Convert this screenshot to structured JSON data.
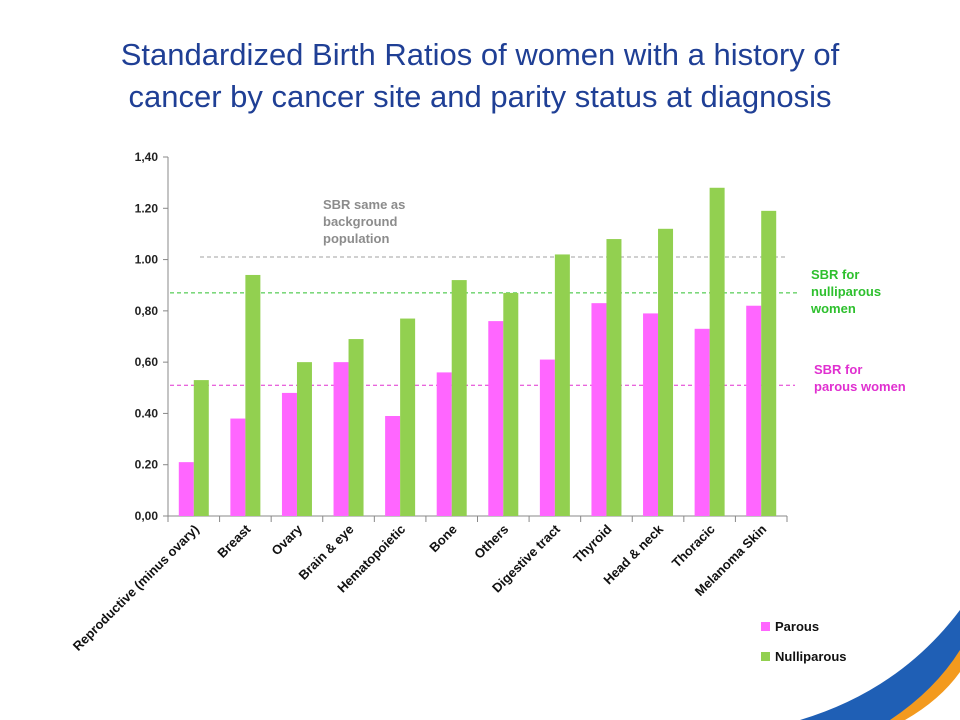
{
  "title": {
    "line1": "Standardized Birth Ratios of women with a history of",
    "line2": "cancer by cancer site and parity status at diagnosis"
  },
  "colors": {
    "parous": "#ff66ff",
    "nulliparous": "#92d050",
    "background_ref": "#a0a0a0",
    "nulliparous_ref": "#2ec02e",
    "parous_ref": "#e030d0",
    "title": "#1f3f95",
    "accent_blue": "#1f5fb5",
    "accent_orange": "#f39a1e"
  },
  "chart_data": {
    "type": "bar",
    "categories": [
      "Reproductive (minus ovary)",
      "Breast",
      "Ovary",
      "Brain & eye",
      "Hematopoietic",
      "Bone",
      "Others",
      "Digestive tract",
      "Thyroid",
      "Head & neck",
      "Thoracic",
      "Melanoma Skin"
    ],
    "series": [
      {
        "name": "Parous",
        "values": [
          0.21,
          0.38,
          0.48,
          0.6,
          0.39,
          0.56,
          0.76,
          0.61,
          0.83,
          0.79,
          0.73,
          0.82
        ]
      },
      {
        "name": "Nulliparous",
        "values": [
          0.53,
          0.94,
          0.6,
          0.69,
          0.77,
          0.92,
          0.87,
          1.02,
          1.08,
          1.12,
          1.28,
          1.19
        ]
      }
    ],
    "ylim": [
      0,
      1.4
    ],
    "yticks": [
      "0,00",
      "0.20",
      "0.40",
      "0,60",
      "0,80",
      "1.00",
      "1.20",
      "1,40"
    ],
    "ytick_values": [
      0,
      0.2,
      0.4,
      0.6,
      0.8,
      1.0,
      1.2,
      1.4
    ],
    "legend_position": "bottom-right",
    "reference_lines": [
      {
        "label": [
          "SBR same as",
          "background",
          "population"
        ],
        "value": 1.01,
        "color": "#a0a0a0"
      },
      {
        "label": [
          "SBR for",
          "nulliparous",
          "women"
        ],
        "value": 0.87,
        "color": "#2ec02e"
      },
      {
        "label": [
          "SBR for",
          "parous women"
        ],
        "value": 0.51,
        "color": "#e030d0"
      }
    ]
  }
}
